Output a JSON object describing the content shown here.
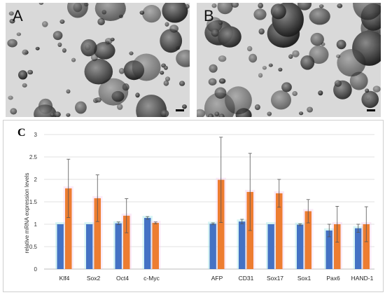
{
  "panels": {
    "a_label": "A",
    "b_label": "B",
    "c_label": "C"
  },
  "colors": {
    "series_1": "#4472C4",
    "series_2": "#ED7D31",
    "series_1_glow": "#8fe3e3",
    "series_2_glow": "#f3c6ea"
  },
  "chart_data": {
    "type": "bar",
    "title": "",
    "xlabel": "",
    "ylabel": "relative mRNA expression levels",
    "ylim": [
      0,
      3
    ],
    "yticks": [
      "0",
      "0.5",
      "1",
      "1.5",
      "2",
      "2.5",
      "3"
    ],
    "grid": true,
    "legend": "none",
    "categories": [
      "Klf4",
      "Sox2",
      "Oct4",
      "c-Myc",
      "AFP",
      "CD31",
      "Sox17",
      "Sox1",
      "Pax6",
      "HAND-1"
    ],
    "series": [
      {
        "values": [
          1.0,
          1.0,
          1.02,
          1.14,
          1.01,
          1.06,
          1.0,
          0.99,
          0.86,
          0.91
        ],
        "errors": [
          0.0,
          0.0,
          0.03,
          0.03,
          0.02,
          0.05,
          0.0,
          0.02,
          0.14,
          0.09
        ]
      },
      {
        "values": [
          1.8,
          1.58,
          1.19,
          1.03,
          1.99,
          1.72,
          1.69,
          1.29,
          1.0,
          1.0
        ],
        "errors": [
          0.65,
          0.52,
          0.38,
          0.02,
          0.95,
          0.86,
          0.31,
          0.26,
          0.4,
          0.39
        ]
      }
    ]
  }
}
